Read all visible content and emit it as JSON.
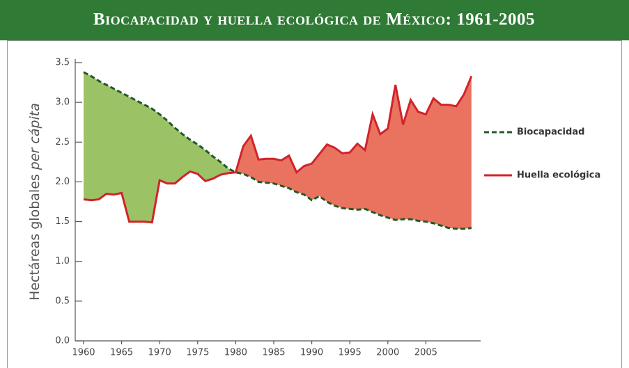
{
  "chart_data": {
    "type": "area-line",
    "title": "Biocapacidad y huella ecológica de México: 1961-2005",
    "y_label": [
      "Hectáreas globales",
      "per cápita"
    ],
    "x": [
      1960,
      1961,
      1962,
      1963,
      1964,
      1965,
      1966,
      1967,
      1968,
      1969,
      1970,
      1971,
      1972,
      1973,
      1974,
      1975,
      1976,
      1977,
      1978,
      1979,
      1980,
      1981,
      1982,
      1983,
      1984,
      1985,
      1986,
      1987,
      1988,
      1989,
      1990,
      1991,
      1992,
      1993,
      1994,
      1995,
      1996,
      1997,
      1998,
      1999,
      2000,
      2001,
      2002,
      2003,
      2004,
      2005,
      2006,
      2007,
      2008,
      2009,
      2010,
      2011
    ],
    "series": [
      {
        "name": "Biocapacidad",
        "color": "#1f5a2a",
        "fill": "#9cc266",
        "dashed": true,
        "values": [
          3.38,
          3.33,
          3.27,
          3.22,
          3.17,
          3.12,
          3.07,
          3.02,
          2.97,
          2.92,
          2.85,
          2.77,
          2.68,
          2.6,
          2.53,
          2.47,
          2.4,
          2.32,
          2.25,
          2.17,
          2.12,
          2.1,
          2.06,
          2.0,
          1.99,
          1.98,
          1.95,
          1.92,
          1.87,
          1.84,
          1.77,
          1.82,
          1.75,
          1.7,
          1.67,
          1.66,
          1.65,
          1.66,
          1.62,
          1.58,
          1.55,
          1.52,
          1.53,
          1.53,
          1.51,
          1.5,
          1.48,
          1.45,
          1.42,
          1.41,
          1.41,
          1.42
        ]
      },
      {
        "name": "Huella ecológica",
        "color": "#d1232a",
        "fill": "#e9735f",
        "dashed": false,
        "values": [
          1.78,
          1.77,
          1.78,
          1.85,
          1.84,
          1.86,
          1.5,
          1.5,
          1.5,
          1.49,
          2.02,
          1.98,
          1.98,
          2.06,
          2.13,
          2.1,
          2.01,
          2.04,
          2.09,
          2.11,
          2.12,
          2.45,
          2.58,
          2.28,
          2.29,
          2.29,
          2.27,
          2.33,
          2.12,
          2.2,
          2.23,
          2.35,
          2.47,
          2.43,
          2.36,
          2.37,
          2.48,
          2.4,
          2.85,
          2.6,
          2.67,
          3.22,
          2.72,
          3.03,
          2.88,
          2.85,
          3.05,
          2.97,
          2.97,
          2.95,
          3.1,
          3.33
        ]
      }
    ],
    "xlim": [
      1958.9,
      2012.2
    ],
    "xticks": [
      1960,
      1965,
      1970,
      1975,
      1980,
      1985,
      1990,
      1995,
      2000,
      2005
    ],
    "ylim": [
      0,
      3.5
    ],
    "yticks": [
      {
        "value": 0,
        "label": "0.0"
      },
      0.5,
      {
        "value": 1,
        "label": "1.0"
      },
      1.5,
      {
        "value": 2,
        "label": "2.0"
      },
      2.5,
      {
        "value": 3,
        "label": "3.0"
      },
      3.5
    ],
    "legend": "right"
  }
}
